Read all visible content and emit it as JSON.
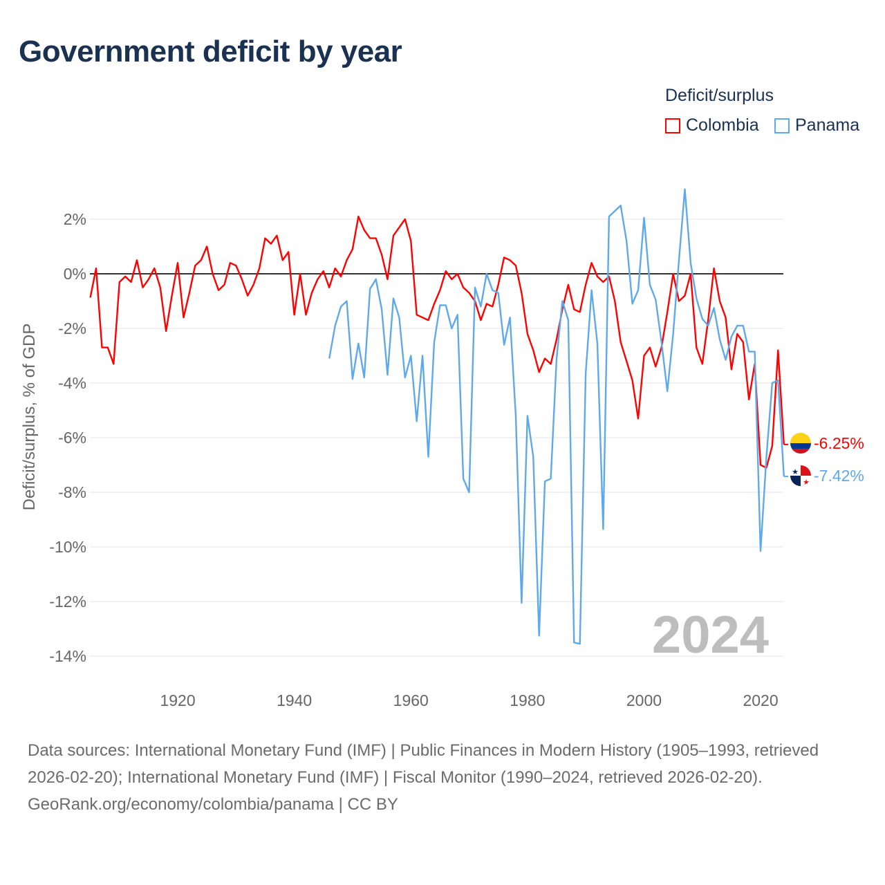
{
  "title": "Government deficit by year",
  "legend": {
    "title": "Deficit/surplus",
    "items": [
      {
        "name": "Colombia",
        "color": "#ff0000"
      },
      {
        "name": "Panama",
        "color": "#5ea8ec"
      }
    ]
  },
  "year_label": "2024",
  "end_labels": {
    "colombia": "-6.25%",
    "panama": "-7.42%"
  },
  "footer": {
    "sources": "Data sources: International Monetary Fund (IMF) | Public Finances in Modern History (1905–1993, retrieved 2026-02-20); International Monetary Fund (IMF) | Fiscal Monitor (1990–2024, retrieved 2026-02-20).",
    "credit": "GeoRank.org/economy/colombia/panama | CC BY"
  },
  "chart_data": {
    "type": "line",
    "title": "Government deficit by year",
    "xlabel": "",
    "ylabel": "Deficit/surplus, % of GDP",
    "xlim": [
      1905,
      2024
    ],
    "ylim": [
      -15.5,
      3.5
    ],
    "x_ticks": [
      1920,
      1940,
      1960,
      1980,
      2000,
      2020
    ],
    "x_tick_labels": [
      "1920",
      "1940",
      "1960",
      "1980",
      "2000",
      "2020"
    ],
    "y_ticks": [
      2,
      0,
      -2,
      -4,
      -6,
      -8,
      -10,
      -12,
      -14
    ],
    "y_tick_labels": [
      "2%",
      "0%",
      "-2%",
      "-4%",
      "-6%",
      "-8%",
      "-10%",
      "-12%",
      "-14%"
    ],
    "grid": true,
    "legend_position": "top-right",
    "series": [
      {
        "name": "Colombia",
        "color": "#ff0000",
        "start_year": 1905,
        "values": [
          -0.87,
          0.2,
          -2.7,
          -2.7,
          -3.3,
          -0.3,
          -0.1,
          -0.3,
          0.5,
          -0.5,
          -0.2,
          0.2,
          -0.5,
          -2.1,
          -0.8,
          0.4,
          -1.6,
          -0.7,
          0.3,
          0.5,
          1.0,
          0,
          -0.6,
          -0.4,
          0.4,
          0.3,
          -0.2,
          -0.8,
          -0.4,
          0.2,
          1.3,
          1.1,
          1.4,
          0.5,
          0.8,
          -1.5,
          0,
          -1.5,
          -0.7,
          -0.2,
          0.1,
          -0.5,
          0.2,
          -0.1,
          0.5,
          0.9,
          2.1,
          1.6,
          1.3,
          1.3,
          0.7,
          -0.2,
          1.4,
          1.7,
          2.0,
          1.2,
          -1.5,
          -1.6,
          -1.7,
          -1.1,
          -0.6,
          0.1,
          -0.2,
          0,
          -0.5,
          -0.7,
          -1.0,
          -1.7,
          -1.1,
          -1.2,
          -0.4,
          0.6,
          0.5,
          0.3,
          -0.7,
          -2.2,
          -2.8,
          -3.6,
          -3.1,
          -3.3,
          -2.4,
          -1.3,
          -0.4,
          -1.3,
          -1.4,
          -0.4,
          0.4,
          -0.1,
          -0.3,
          -0.1,
          -1.0,
          -2.5,
          -3.2,
          -3.9,
          -5.3,
          -3.0,
          -2.7,
          -3.4,
          -2.7,
          -1.4,
          0,
          -1.0,
          -0.8,
          0,
          -2.7,
          -3.3,
          -1.7,
          0.2,
          -1.0,
          -1.6,
          -3.5,
          -2.2,
          -2.5,
          -4.6,
          -3.3,
          -7.0,
          -7.1,
          -6.3,
          -2.8,
          -6.25
        ]
      },
      {
        "name": "Panama",
        "color": "#5ea8ec",
        "start_year": 1946,
        "values": [
          -3.1,
          -1.9,
          -1.2,
          -1.0,
          -3.85,
          -2.55,
          -3.8,
          -0.55,
          -0.2,
          -1.3,
          -3.7,
          -0.9,
          -1.6,
          -3.8,
          -3.0,
          -5.4,
          -3.0,
          -6.7,
          -2.5,
          -1.15,
          -1.15,
          -2.0,
          -1.5,
          -7.5,
          -8.0,
          -0.5,
          -1.2,
          0.0,
          -0.6,
          -0.7,
          -2.6,
          -1.6,
          -5.2,
          -12.05,
          -5.2,
          -6.7,
          -13.25,
          -7.6,
          -7.5,
          -3.1,
          -1.0,
          -1.7,
          -13.5,
          -13.55,
          -3.65,
          -0.6,
          -2.55,
          -9.35,
          2.1,
          2.3,
          2.5,
          1.2,
          -1.1,
          -0.6,
          2.05,
          -0.4,
          -0.95,
          -2.5,
          -4.3,
          -2.2,
          0.5,
          3.1,
          0.4,
          -0.9,
          -1.65,
          -1.9,
          -1.25,
          -2.4,
          -3.15,
          -2.3,
          -1.9,
          -1.9,
          -2.85,
          -2.85,
          -10.15,
          -6.7,
          -4.0,
          -3.9,
          -7.42
        ]
      }
    ]
  }
}
